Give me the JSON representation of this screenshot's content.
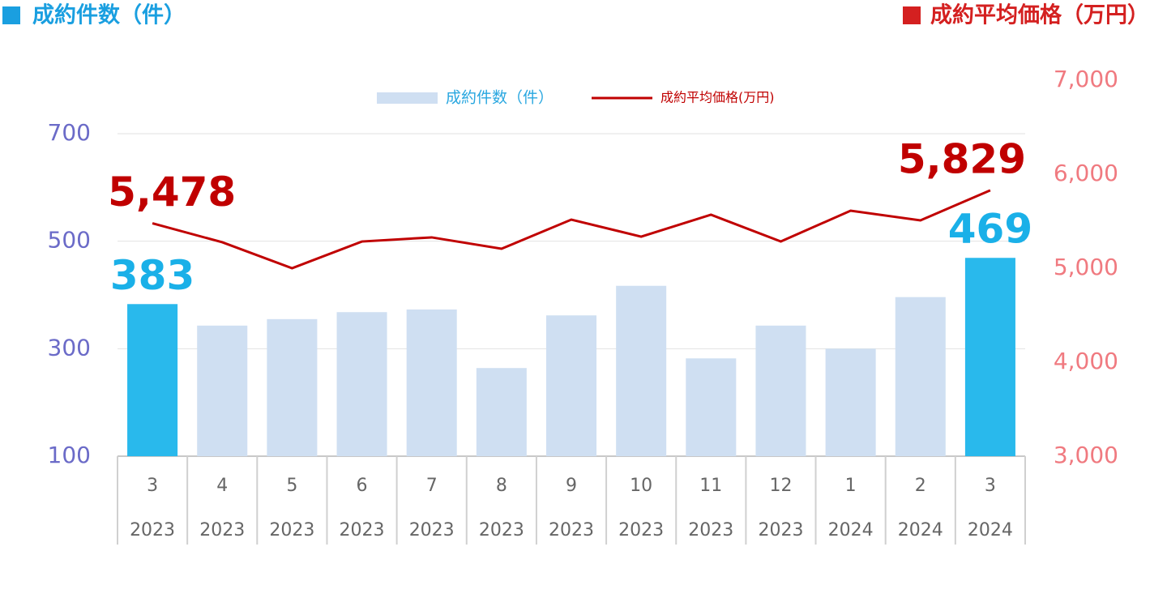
{
  "chart_data": {
    "type": "bar-line",
    "left_axis_title": "成約件数（件）",
    "right_axis_title": "成約平均価格（万円）",
    "categories": [
      "3",
      "4",
      "5",
      "6",
      "7",
      "8",
      "9",
      "10",
      "11",
      "12",
      "1",
      "2",
      "3"
    ],
    "years": [
      "2023",
      "2023",
      "2023",
      "2023",
      "2023",
      "2023",
      "2023",
      "2023",
      "2023",
      "2023",
      "2024",
      "2024",
      "2024"
    ],
    "series": [
      {
        "name": "成約件数（件）",
        "kind": "bar",
        "color": "#cfdff2",
        "colors": [
          "#29b9ec",
          "#cfdff2",
          "#cfdff2",
          "#cfdff2",
          "#cfdff2",
          "#cfdff2",
          "#cfdff2",
          "#cfdff2",
          "#cfdff2",
          "#cfdff2",
          "#cfdff2",
          "#cfdff2",
          "#29b9ec"
        ],
        "label_color": "#1ab0e8",
        "values": [
          383,
          343,
          355,
          368,
          373,
          264,
          362,
          417,
          282,
          343,
          300,
          396,
          469
        ],
        "value_labels": [
          "383",
          null,
          null,
          null,
          null,
          null,
          null,
          null,
          null,
          null,
          null,
          null,
          "469"
        ]
      },
      {
        "name": "成約平均価格(万円)",
        "kind": "line",
        "axis": "y2",
        "color": "#c00000",
        "values": [
          5478,
          5276,
          5000,
          5284,
          5328,
          5207,
          5517,
          5336,
          5569,
          5284,
          5612,
          5509,
          5829
        ],
        "value_labels": [
          "5,478",
          null,
          null,
          null,
          null,
          null,
          null,
          null,
          null,
          null,
          null,
          null,
          "5,829"
        ]
      }
    ],
    "ylim": [
      100,
      700
    ],
    "yticks": [
      100,
      300,
      500,
      700
    ],
    "y2lim": [
      3000,
      7000
    ],
    "y2ticks": [
      {
        "value": 3000,
        "label": "3,000"
      },
      {
        "value": 4000,
        "label": "4,000"
      },
      {
        "value": 5000,
        "label": "5,000"
      },
      {
        "value": 6000,
        "label": "6,000"
      },
      {
        "value": 7000,
        "label": "7,000"
      }
    ],
    "grid": true,
    "legend": "top"
  }
}
